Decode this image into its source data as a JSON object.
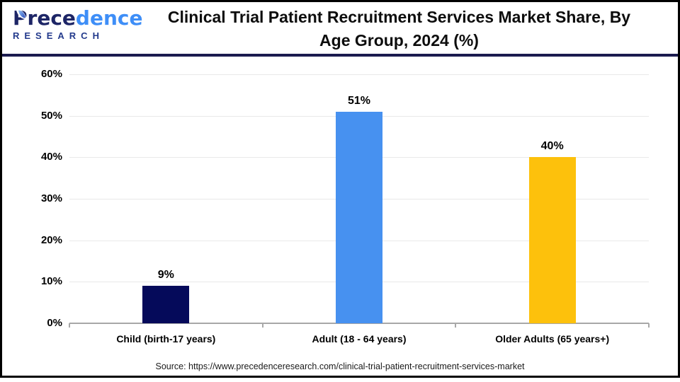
{
  "header": {
    "logo": {
      "name_primary": "Prece",
      "name_secondary": "dence",
      "subtitle": "RESEARCH"
    },
    "title_line1": "Clinical Trial Patient Recruitment Services Market Share, By",
    "title_line2": "Age Group, 2024 (%)"
  },
  "footer": {
    "source": "Source: https://www.precedenceresearch.com/clinical-trial-patient-recruitment-services-market"
  },
  "colors": {
    "frame": "#000000",
    "divider": "#1b1b4f",
    "gridline": "#e9e9e9",
    "axis": "#a8a8a8",
    "label_text": "#000000",
    "logo_dark": "#1d2566",
    "logo_light": "#3e8ef7"
  },
  "chart_data": {
    "type": "bar",
    "title": "Clinical Trial Patient Recruitment Services Market Share, By Age Group, 2024 (%)",
    "categories": [
      "Child (birth-17 years)",
      "Adult (18 - 64 years)",
      "Older Adults (65 years+)"
    ],
    "values": [
      9,
      51,
      40
    ],
    "value_labels": [
      "9%",
      "51%",
      "40%"
    ],
    "bar_colors": [
      "#050a5a",
      "#4791f0",
      "#fdc10c"
    ],
    "xlabel": "",
    "ylabel": "",
    "ylim": [
      0,
      60
    ],
    "ytick_step": 10,
    "ytick_labels": [
      "0%",
      "10%",
      "20%",
      "30%",
      "40%",
      "50%",
      "60%"
    ],
    "grid": true,
    "legend": false
  }
}
